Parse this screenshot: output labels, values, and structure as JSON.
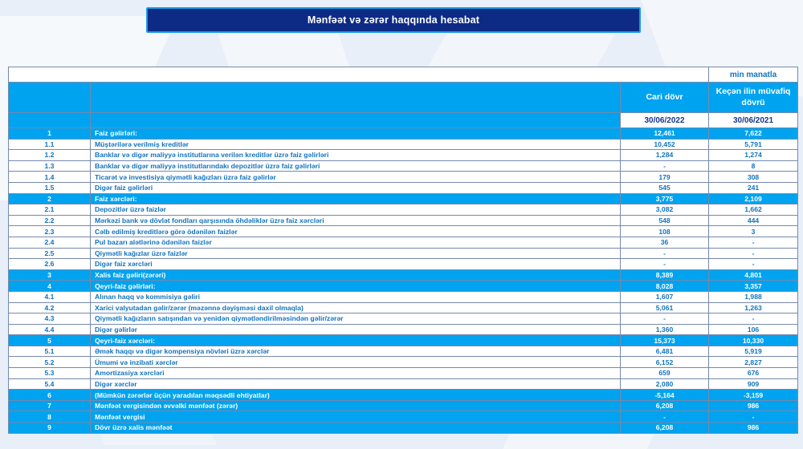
{
  "banner": {
    "title": "Mənfəət və zərər haqqında hesabat"
  },
  "unit_label": "min manatla",
  "colors": {
    "accent_blue": "#00a3ef",
    "banner_navy": "#0d2b85",
    "banner_border_blue": "#1a9ae4",
    "row_text_blue": "#1273bd",
    "date_text_navy": "#15378c"
  },
  "table": {
    "headers": {
      "current_period": "Cari dövr",
      "previous_period": "Keçən ilin müvafiq dövrü"
    },
    "dates": {
      "current": "30/06/2022",
      "previous": "30/06/2021"
    },
    "rows": [
      {
        "no": "1",
        "label": "Faiz gəlirləri:",
        "current": "12,461",
        "previous": "7,622",
        "highlight": true
      },
      {
        "no": "1.1",
        "label": "Müştərilərə verilmiş kreditlər",
        "current": "10,452",
        "previous": "5,791",
        "highlight": false
      },
      {
        "no": "1.2",
        "label": "Banklar və digər maliyyə institutlarına verilən kreditlər üzrə faiz gəlirləri",
        "current": "1,284",
        "previous": "1,274",
        "highlight": false
      },
      {
        "no": "1.3",
        "label": "Banklar və digər maliyyə institutlarındakı depozitlər üzrə faiz gəlirləri",
        "current": "-",
        "previous": "8",
        "highlight": false
      },
      {
        "no": "1.4",
        "label": "Ticarət və investisiya qiymətli kağızları üzrə faiz gəlirlər",
        "current": "179",
        "previous": "308",
        "highlight": false
      },
      {
        "no": "1.5",
        "label": "Digər faiz gəlirləri",
        "current": "545",
        "previous": "241",
        "highlight": false
      },
      {
        "no": "2",
        "label": "Faiz xərcləri:",
        "current": "3,775",
        "previous": "2,109",
        "highlight": true
      },
      {
        "no": "2.1",
        "label": "Depozitlər üzrə faizlər",
        "current": "3,082",
        "previous": "1,662",
        "highlight": false
      },
      {
        "no": "2.2",
        "label": "Mərkəzi bank və dövlət fondları qarşısında öhdəliklər üzrə faiz xərcləri",
        "current": "548",
        "previous": "444",
        "highlight": false
      },
      {
        "no": "2.3",
        "label": "Cəlb edilmiş kreditlərə görə ödənilən faizlər",
        "current": "108",
        "previous": "3",
        "highlight": false
      },
      {
        "no": "2.4",
        "label": "Pul bazarı alətlərinə ödənilən faizlər",
        "current": "36",
        "previous": "-",
        "highlight": false
      },
      {
        "no": "2.5",
        "label": "Qiymətli kağızlar üzrə faizlər",
        "current": "-",
        "previous": "-",
        "highlight": false
      },
      {
        "no": "2.6",
        "label": "Digər faiz xərcləri",
        "current": "-",
        "previous": "-",
        "highlight": false
      },
      {
        "no": "3",
        "label": "Xalis faiz gəliri(zərəri)",
        "current": "8,389",
        "previous": "4,801",
        "highlight": true
      },
      {
        "no": "4",
        "label": "Qeyri-faiz gəlirləri:",
        "current": "8,028",
        "previous": "3,357",
        "highlight": true
      },
      {
        "no": "4.1",
        "label": "Alınan haqq və kommisiya gəliri",
        "current": "1,607",
        "previous": "1,988",
        "highlight": false
      },
      {
        "no": "4.2",
        "label": "Xarici valyutadan gəlir/zərər (məzənnə dəyişməsi daxil olmaqla)",
        "current": "5,061",
        "previous": "1,263",
        "highlight": false
      },
      {
        "no": "4.3",
        "label": "Qiymətli kağızların satışından və yenidən qiymətləndirilməsindən gəlir/zərər",
        "current": "-",
        "previous": "-",
        "highlight": false
      },
      {
        "no": "4.4",
        "label": "Digər gəlirlər",
        "current": "1,360",
        "previous": "106",
        "highlight": false
      },
      {
        "no": "5",
        "label": "Qeyri-faiz xərcləri:",
        "current": "15,373",
        "previous": "10,330",
        "highlight": true
      },
      {
        "no": "5.1",
        "label": "Əmək haqqı və digər kompensiya növləri üzrə xərclər",
        "current": "6,481",
        "previous": "5,919",
        "highlight": false
      },
      {
        "no": "5.2",
        "label": "Ümumi və inzibati xərclər",
        "current": "6,152",
        "previous": "2,827",
        "highlight": false
      },
      {
        "no": "5.3",
        "label": "Amortizasiya xərcləri",
        "current": "659",
        "previous": "676",
        "highlight": false
      },
      {
        "no": "5.4",
        "label": "Digər xərclər",
        "current": "2,080",
        "previous": "909",
        "highlight": false
      },
      {
        "no": "6",
        "label": "(Mümkün zərərlər üçün yaradılan məqsədli ehtiyatlar)",
        "current": "-5,164",
        "previous": "-3,159",
        "highlight": true
      },
      {
        "no": "7",
        "label": "Mənfəət vergisindən əvvəlki mənfəət (zərər)",
        "current": "6,208",
        "previous": "986",
        "highlight": true
      },
      {
        "no": "8",
        "label": "Mənfəət vergisi",
        "current": "-",
        "previous": "-",
        "highlight": true
      },
      {
        "no": "9",
        "label": "Dövr üzrə xalis mənfəət",
        "current": "6,208",
        "previous": "986",
        "highlight": true
      }
    ]
  }
}
